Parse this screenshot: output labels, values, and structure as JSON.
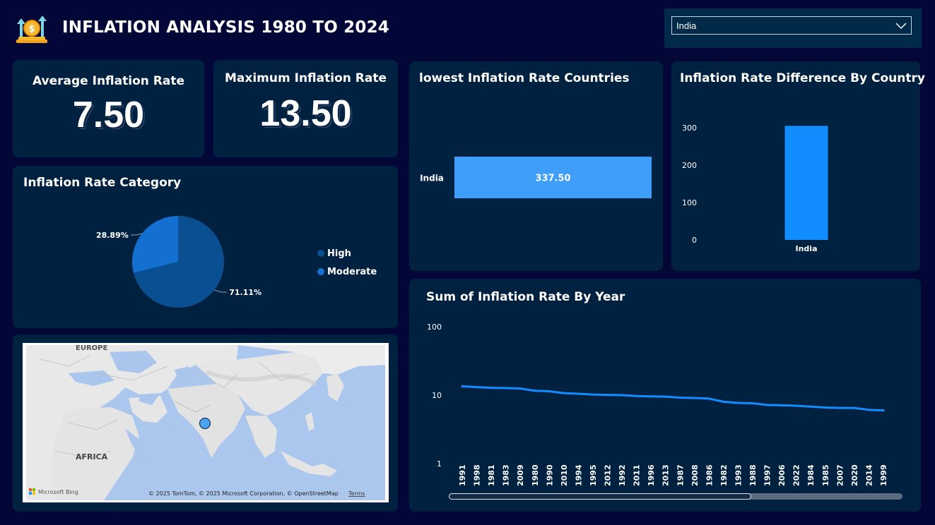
{
  "header": {
    "title": "INFLATION ANALYSIS 1980 TO 2024",
    "logo_icon": "coin-growth-icon"
  },
  "slicer": {
    "selected_value": "India",
    "icon": "chevron-down-icon"
  },
  "kpis": {
    "average": {
      "label": "Average Inflation Rate",
      "value": "7.50"
    },
    "maximum": {
      "label": "Maximum Inflation Rate",
      "value": "13.50"
    }
  },
  "map": {
    "labels": {
      "europe": "EUROPE",
      "africa": "AFRICA"
    },
    "bing_label": "Microsoft Bing",
    "attribution": "© 2025 TomTom, © 2025 Microsoft Corporation, © OpenStreetMap",
    "terms": "Terms",
    "marker_color": "#4aa3f0"
  },
  "colors": {
    "background": "#030737",
    "card": "#002140",
    "bar_light": "#3f9ef8",
    "bar_blue": "#118dff",
    "line": "#118dff",
    "pie_high": "#0a4f91",
    "pie_moderate": "#1470d0"
  },
  "chart_data": [
    {
      "type": "pie",
      "title": "Inflation Rate Category",
      "slices": [
        {
          "name": "High",
          "value": 71.11,
          "label": "71.11%",
          "color": "#0a4f91"
        },
        {
          "name": "Moderate",
          "value": 28.89,
          "label": "28.89%",
          "color": "#1470d0"
        }
      ],
      "legend": "right"
    },
    {
      "type": "bar",
      "orientation": "horizontal",
      "title": "lowest Inflation Rate Countries",
      "categories": [
        "India"
      ],
      "values": [
        337.5
      ],
      "data_labels": [
        "337.50"
      ]
    },
    {
      "type": "bar",
      "title": "Inflation Rate Difference By Country",
      "categories": [
        "India"
      ],
      "values": [
        305
      ],
      "ylim": [
        0,
        300
      ],
      "yticks": [
        0,
        100,
        200,
        300
      ]
    },
    {
      "type": "line",
      "title": "Sum of Inflation Rate By Year",
      "yscale": "log",
      "ylim": [
        1,
        100
      ],
      "yticks": [
        1,
        10,
        100
      ],
      "x": [
        "1991",
        "1998",
        "1981",
        "1983",
        "2009",
        "1980",
        "1990",
        "2010",
        "1994",
        "1995",
        "2012",
        "1992",
        "2011",
        "1996",
        "2013",
        "1987",
        "2008",
        "1986",
        "1982",
        "1993",
        "1988",
        "1997",
        "2006",
        "2022",
        "1984",
        "1985",
        "2007",
        "2020",
        "2014",
        "1999"
      ],
      "values": [
        13.5,
        13.1,
        12.8,
        12.7,
        12.5,
        11.6,
        11.4,
        10.7,
        10.5,
        10.2,
        10.1,
        10.0,
        9.7,
        9.6,
        9.5,
        9.2,
        9.1,
        8.9,
        8.0,
        7.7,
        7.6,
        7.2,
        7.1,
        7.0,
        6.8,
        6.6,
        6.5,
        6.5,
        6.1,
        6.0
      ]
    }
  ]
}
